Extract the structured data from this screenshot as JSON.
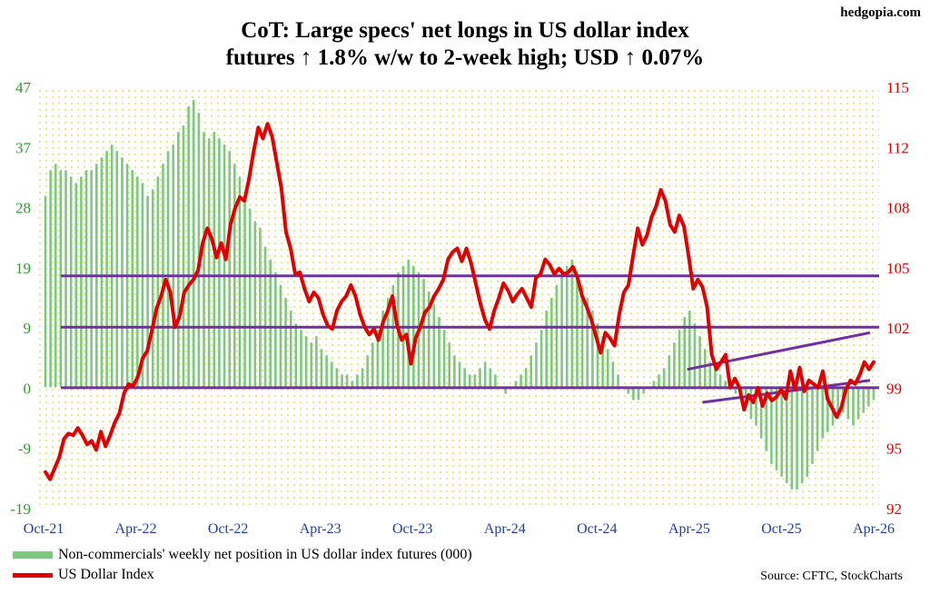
{
  "brand": "hedgopia.com",
  "title_line1": "CoT: Large specs' net longs in US dollar index",
  "title_line2": "futures ↑ 1.8% w/w to 2-week high; USD ↑ 0.07%",
  "legend": {
    "series1": "Non-commercials' weekly net position in US dollar index futures (000)",
    "series2": "US Dollar Index"
  },
  "source": "Source: CFTC, StockCharts",
  "colors": {
    "bars": "#7fc87f",
    "usd_line": "#e00000",
    "left_axis": "#2e9c2e",
    "right_axis": "#e00000",
    "trendlines": "#7030a0",
    "dots": "#e9e47a"
  },
  "chart_data": {
    "type": "bar",
    "x_tick_labels": [
      "Oct-21",
      "Apr-22",
      "Oct-22",
      "Apr-23",
      "Oct-23",
      "Apr-24",
      "Oct-24",
      "Apr-25",
      "Oct-25",
      "Apr-26"
    ],
    "x_range": [
      "2021-10",
      "2026-04"
    ],
    "left_axis": {
      "ticks": [
        "47",
        "37",
        "28",
        "19",
        "9",
        "0",
        "-9",
        "-19"
      ],
      "ylim": [
        -19,
        47
      ]
    },
    "right_axis": {
      "ticks": [
        "115",
        "112",
        "108",
        "105",
        "102",
        "99",
        "95",
        "92"
      ],
      "ylim": [
        92,
        115
      ]
    },
    "series": [
      {
        "name": "Non-commercials' weekly net position in US dollar index futures (000)",
        "type": "bar",
        "axis": "left",
        "x_start": "2021-10",
        "values": [
          30,
          34,
          35,
          34,
          34,
          33,
          32,
          33,
          34,
          34,
          35,
          36,
          37,
          38,
          37,
          36,
          35,
          34,
          33,
          32,
          30,
          31,
          33,
          35,
          37,
          38,
          40,
          41,
          44,
          45,
          43,
          40,
          39,
          40,
          39,
          38,
          37,
          35,
          33,
          30,
          28,
          26,
          25,
          22,
          20,
          18,
          16,
          14,
          12,
          10,
          9,
          8,
          7,
          8,
          6,
          5,
          4,
          3,
          2,
          2,
          1,
          2,
          3,
          5,
          7,
          9,
          12,
          14,
          16,
          18,
          19,
          20,
          19,
          18,
          17,
          15,
          13,
          11,
          9,
          7,
          5,
          4,
          3,
          2,
          2,
          3,
          4,
          3,
          2,
          0,
          -1,
          0,
          1,
          2,
          3,
          5,
          7,
          9,
          12,
          14,
          16,
          18,
          19,
          20,
          18,
          16,
          14,
          12,
          10,
          8,
          6,
          4,
          2,
          0,
          -1,
          -2,
          -2,
          -1,
          0,
          1,
          2,
          3,
          5,
          7,
          9,
          11,
          12,
          10,
          8,
          6,
          4,
          3,
          2,
          1,
          0,
          -1,
          -2,
          -3,
          -5,
          -6,
          -8,
          -10,
          -12,
          -13,
          -14,
          -15,
          -16,
          -16,
          -15,
          -14,
          -12,
          -10,
          -8,
          -7,
          -6,
          -5,
          -4,
          -5,
          -6,
          -5,
          -4,
          -3,
          -2
        ]
      },
      {
        "name": "US Dollar Index",
        "type": "line",
        "axis": "right",
        "x_start": "2021-10",
        "values": [
          94.0,
          93.6,
          94.2,
          94.8,
          95.8,
          96.1,
          96.0,
          96.4,
          96.0,
          95.5,
          95.7,
          95.2,
          96.2,
          95.4,
          96.0,
          96.7,
          97.2,
          98.3,
          98.8,
          98.7,
          99.2,
          100.2,
          100.6,
          101.7,
          102.9,
          103.6,
          104.5,
          103.8,
          101.9,
          102.5,
          103.8,
          104.2,
          104.5,
          105.0,
          106.5,
          107.3,
          106.7,
          105.7,
          106.5,
          105.6,
          107.5,
          108.4,
          109.0,
          108.8,
          110.0,
          111.5,
          112.8,
          112.2,
          113.0,
          112.3,
          110.9,
          109.5,
          107.1,
          106.2,
          104.8,
          104.9,
          104.0,
          103.3,
          103.8,
          103.5,
          102.6,
          102.0,
          101.8,
          102.8,
          103.3,
          103.6,
          104.2,
          103.6,
          102.6,
          101.9,
          101.5,
          101.8,
          101.2,
          102.2,
          102.8,
          103.6,
          102.0,
          101.2,
          101.5,
          99.9,
          101.3,
          101.9,
          102.7,
          103.0,
          103.6,
          104.0,
          104.5,
          105.6,
          106.0,
          106.2,
          105.5,
          106.2,
          105.4,
          104.3,
          103.2,
          102.3,
          101.8,
          102.8,
          103.5,
          104.3,
          103.9,
          103.3,
          103.7,
          104.0,
          103.5,
          103.0,
          104.6,
          104.8,
          105.6,
          105.3,
          104.8,
          105.1,
          104.8,
          104.9,
          105.2,
          104.6,
          103.6,
          103.0,
          102.3,
          101.4,
          100.5,
          101.6,
          101.3,
          100.9,
          102.6,
          103.8,
          104.2,
          105.8,
          107.3,
          106.4,
          106.9,
          107.9,
          108.5,
          109.4,
          108.8,
          107.5,
          107.1,
          108.0,
          107.4,
          105.8,
          104.0,
          104.5,
          104.1,
          103.0,
          100.4,
          99.6,
          100.0,
          100.4,
          98.6,
          99.1,
          98.6,
          97.4,
          98.2,
          97.8,
          98.6,
          97.6,
          98.3,
          97.9,
          98.1,
          98.5,
          98.0,
          99.5,
          98.5,
          99.7,
          98.4,
          99.0,
          98.8,
          98.6,
          99.5,
          98.0,
          97.5,
          97.0,
          97.5,
          98.5,
          99.0,
          98.8,
          99.3,
          100.0,
          99.6,
          100.0
        ]
      }
    ],
    "reference_lines": [
      {
        "type": "horizontal",
        "axis": "right",
        "value": 104.7
      },
      {
        "type": "horizontal",
        "axis": "right",
        "value": 101.9
      },
      {
        "type": "horizontal",
        "axis": "right",
        "value": 98.6
      },
      {
        "type": "trend",
        "axis": "right",
        "from": [
          "2025-04",
          99.6
        ],
        "to": [
          "2026-04",
          101.6
        ]
      },
      {
        "type": "trend",
        "axis": "right",
        "from": [
          "2025-05",
          97.8
        ],
        "to": [
          "2026-04",
          99.0
        ]
      }
    ],
    "grid": false
  }
}
